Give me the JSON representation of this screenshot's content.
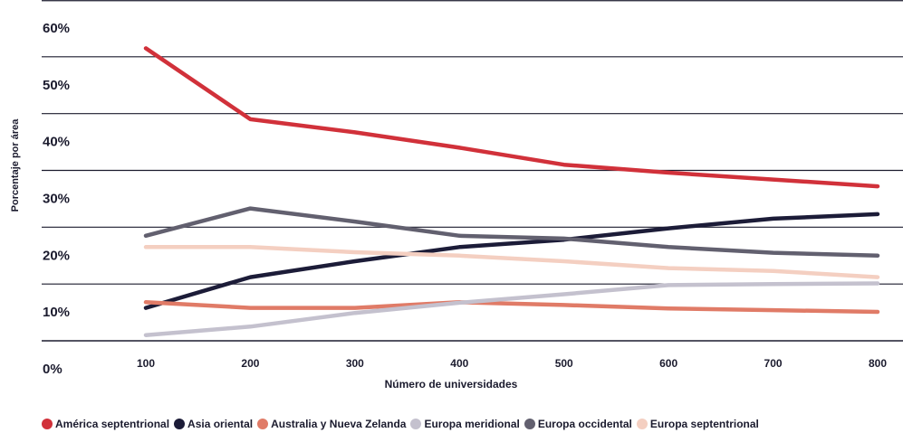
{
  "chart_data": {
    "type": "line",
    "xlabel": "Número de universidades",
    "ylabel": "Porcentaje por área",
    "x": [
      100,
      200,
      300,
      400,
      500,
      600,
      700,
      800
    ],
    "x_tick_labels": [
      "100",
      "200",
      "300",
      "400",
      "500",
      "600",
      "700",
      "800"
    ],
    "ylim": [
      0,
      60
    ],
    "y_ticks": [
      0,
      10,
      20,
      30,
      40,
      50,
      60
    ],
    "y_tick_labels": [
      "0%",
      "10%",
      "20%",
      "30%",
      "40%",
      "50%",
      "60%"
    ],
    "grid": "horizontal",
    "legend_position": "bottom",
    "series": [
      {
        "name": "América septentrional",
        "color": "#d1313a",
        "values": [
          51.5,
          39.0,
          36.7,
          34.0,
          31.0,
          29.6,
          28.4,
          27.2
        ]
      },
      {
        "name": "Asia oriental",
        "color": "#1c1c38",
        "values": [
          5.8,
          11.2,
          14.0,
          16.5,
          17.8,
          19.8,
          21.5,
          22.3
        ]
      },
      {
        "name": "Australia y Nueva Zelanda",
        "color": "#e07b67",
        "values": [
          6.8,
          5.8,
          5.8,
          6.8,
          6.3,
          5.7,
          5.4,
          5.1
        ]
      },
      {
        "name": "Europa meridional",
        "color": "#c4c1ce",
        "values": [
          1.0,
          2.5,
          4.9,
          6.7,
          8.2,
          9.8,
          10.0,
          10.1
        ]
      },
      {
        "name": "Europa occidental",
        "color": "#62606f",
        "values": [
          18.5,
          23.3,
          21.0,
          18.5,
          18.0,
          16.5,
          15.5,
          15.0
        ]
      },
      {
        "name": "Europa septentrional",
        "color": "#f4cfc1",
        "values": [
          16.5,
          16.5,
          15.6,
          15.0,
          14.0,
          12.8,
          12.3,
          11.2
        ]
      }
    ]
  }
}
